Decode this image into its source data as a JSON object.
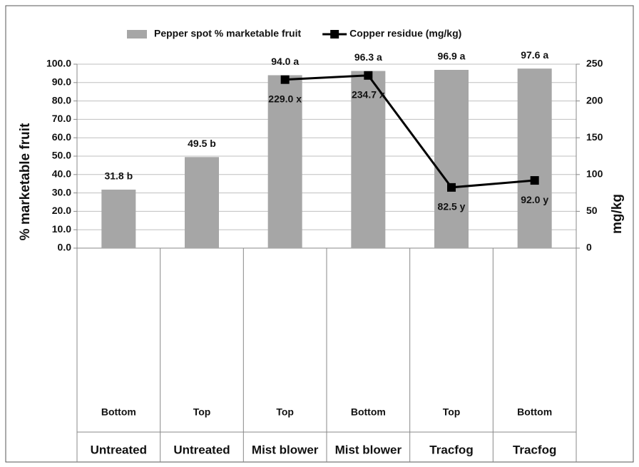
{
  "chart_data": {
    "type": "bar",
    "categories": [
      "Bottom",
      "Top",
      "Top",
      "Bottom",
      "Top",
      "Bottom"
    ],
    "groups": [
      "Untreated",
      "Untreated",
      "Mist blower",
      "Mist blower",
      "Tracfog",
      "Tracfog"
    ],
    "ylabel": "% marketable fruit",
    "y2label": "mg/kg",
    "ylim": [
      0,
      100
    ],
    "yticks": [
      {
        "value": 0,
        "label": "0.0"
      },
      {
        "value": 10,
        "label": "10.0"
      },
      {
        "value": 20,
        "label": "20.0"
      },
      {
        "value": 30,
        "label": "30.0"
      },
      {
        "value": 40,
        "label": "40.0"
      },
      {
        "value": 50,
        "label": "50.0"
      },
      {
        "value": 60,
        "label": "60.0"
      },
      {
        "value": 70,
        "label": "70.0"
      },
      {
        "value": 80,
        "label": "80.0"
      },
      {
        "value": 90,
        "label": "90.0"
      },
      {
        "value": 100,
        "label": "100.0"
      }
    ],
    "y2lim": [
      0,
      250
    ],
    "y2ticks": [
      0,
      50,
      100,
      150,
      200,
      250
    ],
    "grid": true,
    "legend": "top",
    "series": [
      {
        "name": "Pepper spot % marketable fruit",
        "type": "bar",
        "color": "#a6a6a6",
        "values": [
          31.8,
          49.5,
          94.0,
          96.3,
          96.9,
          97.6
        ],
        "value_labels": [
          "31.8 b",
          "49.5 b",
          "94.0 a",
          "96.3 a",
          "96.9 a",
          "97.6 a"
        ]
      },
      {
        "name": "Copper residue (mg/kg)",
        "type": "line",
        "axis": "y2",
        "color": "#000000",
        "values": [
          null,
          null,
          229.0,
          234.7,
          82.5,
          92.0
        ],
        "value_labels": [
          null,
          null,
          "229.0 x",
          "234.7 x",
          "82.5 y",
          "92.0 y"
        ]
      }
    ]
  }
}
